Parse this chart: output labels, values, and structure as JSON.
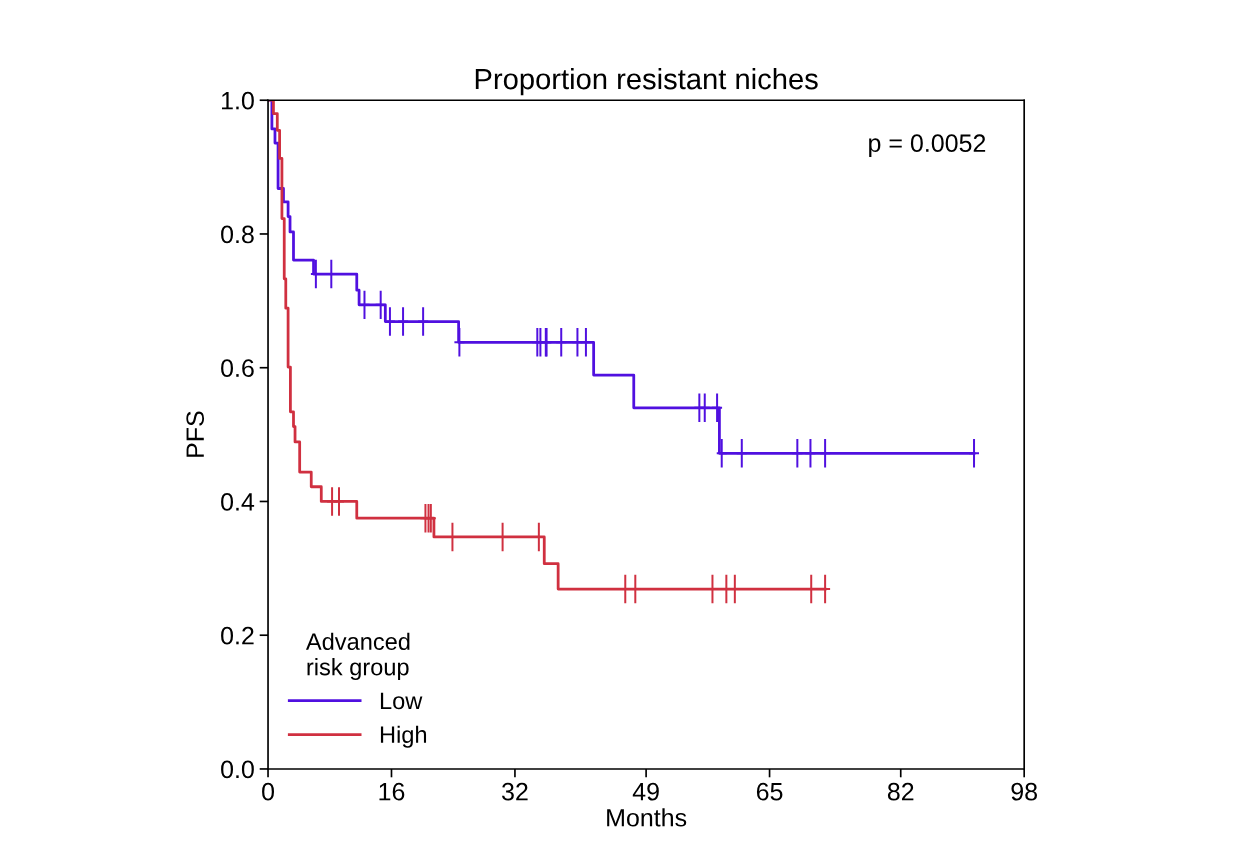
{
  "chart_data": {
    "type": "step",
    "title": "Proportion resistant niches",
    "xlabel": "Months",
    "ylabel": "PFS",
    "legend_title": "Advanced\nrisk group",
    "annotations": [
      "p = 0.0052"
    ],
    "xlim": [
      0,
      98
    ],
    "ylim": [
      0,
      1.0
    ],
    "xticks": [
      0,
      16,
      32,
      49,
      65,
      82,
      98
    ],
    "yticks": [
      {
        "value": 0,
        "label": "0.0"
      },
      0.2,
      0.4,
      0.6,
      0.8,
      {
        "value": 1,
        "label": "1.0"
      }
    ],
    "grid": false,
    "legend": "bottom left",
    "series": [
      {
        "name": "Low",
        "color": "#5010e0",
        "x": [
          0,
          0.5,
          0.9,
          1.3,
          2.0,
          2.6,
          2.85,
          3.3,
          5.9,
          11.5,
          11.8,
          15.2,
          24.7,
          42.2,
          47.4,
          58.5,
          91.5
        ],
        "values": [
          1.0,
          0.957,
          0.936,
          0.868,
          0.848,
          0.826,
          0.803,
          0.761,
          0.74,
          0.716,
          0.694,
          0.669,
          0.638,
          0.589,
          0.54,
          0.472,
          0.472
        ]
      },
      {
        "name": "High",
        "color": "#d03040",
        "x": [
          0,
          0.7,
          1.2,
          1.5,
          1.8,
          2.1,
          2.3,
          2.6,
          2.9,
          3.3,
          3.5,
          4.1,
          5.6,
          6.9,
          11.5,
          21.5,
          35.8,
          37.6,
          72.2
        ],
        "values": [
          1.0,
          0.98,
          0.955,
          0.913,
          0.823,
          0.733,
          0.689,
          0.601,
          0.534,
          0.512,
          0.489,
          0.444,
          0.422,
          0.4,
          0.375,
          0.347,
          0.307,
          0.269,
          0.269
        ]
      },
      {
        "type": "scatter",
        "marker": "cross",
        "color": "#5010e0",
        "x": [
          6.2,
          8.2,
          12.5,
          14.6,
          15.8,
          17.5,
          20.1,
          24.8,
          34.9,
          35.3,
          36.0,
          36.1,
          38.0,
          40.1,
          41.2,
          55.9,
          56.6,
          58.2,
          58.8,
          61.4,
          68.6,
          70.3,
          72.2,
          91.5
        ],
        "values": [
          0.74,
          0.74,
          0.694,
          0.694,
          0.669,
          0.669,
          0.669,
          0.638,
          0.638,
          0.638,
          0.638,
          0.638,
          0.638,
          0.638,
          0.638,
          0.54,
          0.54,
          0.54,
          0.472,
          0.472,
          0.472,
          0.472,
          0.472,
          0.472
        ]
      },
      {
        "type": "scatter",
        "marker": "cross",
        "color": "#d03040",
        "x": [
          8.3,
          9.2,
          20.4,
          20.8,
          21.1,
          23.9,
          30.4,
          35.1,
          46.3,
          47.6,
          57.6,
          59.4,
          60.5,
          70.4,
          72.2
        ],
        "values": [
          0.4,
          0.4,
          0.375,
          0.375,
          0.375,
          0.347,
          0.347,
          0.347,
          0.269,
          0.269,
          0.269,
          0.269,
          0.269,
          0.269,
          0.269
        ]
      }
    ]
  }
}
